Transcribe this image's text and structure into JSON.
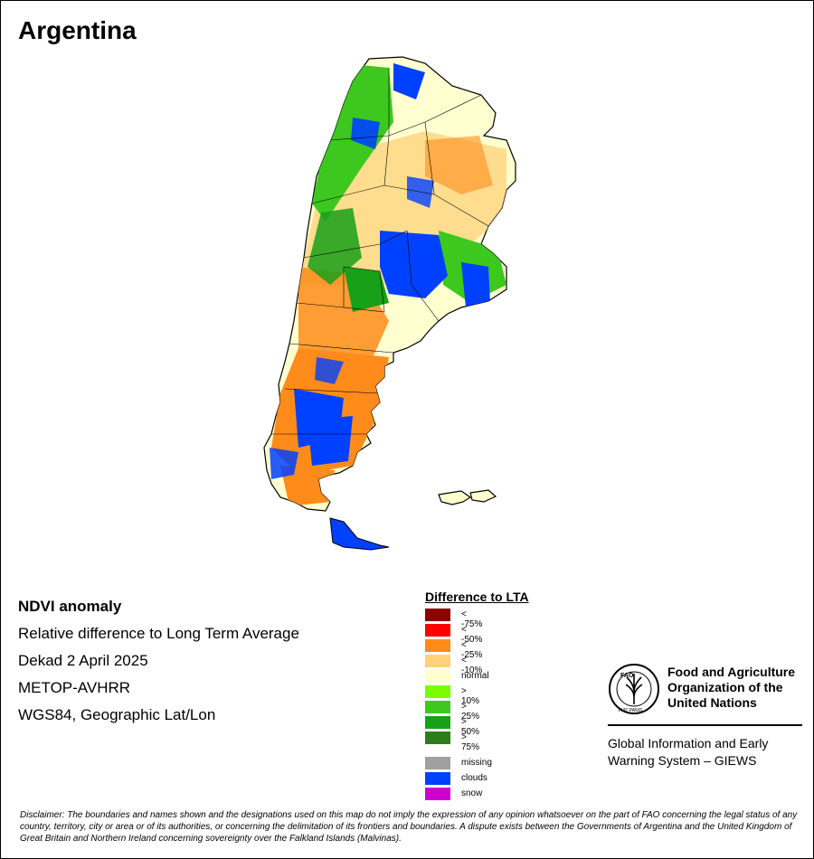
{
  "map": {
    "title": "Argentina"
  },
  "info": {
    "line1": "NDVI anomaly",
    "line2": "Relative difference to Long Term Average",
    "line3": "Dekad 2 April 2025",
    "line4": "METOP-AVHRR",
    "line5": "WGS84, Geographic Lat/Lon"
  },
  "legend": {
    "title": "Difference to LTA",
    "classes": [
      {
        "label": "< -75%",
        "color": "#8b0000"
      },
      {
        "label": "< -50%",
        "color": "#ff0000"
      },
      {
        "label": "< -25%",
        "color": "#ff8c1a"
      },
      {
        "label": "< -10%",
        "color": "#ffd27a"
      },
      {
        "label": "normal",
        "color": "#ffffd0"
      },
      {
        "label": "> 10%",
        "color": "#7cfc00"
      },
      {
        "label": "> 25%",
        "color": "#3cc81e"
      },
      {
        "label": "> 50%",
        "color": "#18a018"
      },
      {
        "label": "> 75%",
        "color": "#2e7d18"
      }
    ],
    "extra": [
      {
        "label": "missing",
        "color": "#a0a0a0"
      },
      {
        "label": "clouds",
        "color": "#0040ff"
      },
      {
        "label": "snow",
        "color": "#cc00cc"
      }
    ]
  },
  "org": {
    "name": "Food and Agriculture Organization of the United Nations",
    "logo_text": "FAO",
    "motto": "FIAT PANIS",
    "system": "Global Information and Early Warning System – GIEWS"
  },
  "disclaimer": "Disclaimer: The boundaries and names shown and the designations used on this map do not imply the expression of any opinion whatsoever on the part of FAO concerning the legal status of any country, territory, city or area or of its authorities, or concerning the delimitation of its frontiers and boundaries. A dispute exists between the Governments of Argentina and the United Kingdom of Great Britain and Northern Ireland concerning sovereignty over the Falkland Islands (Malvinas).",
  "colors": {
    "normal": "#ffffd0",
    "dry": "#ff8c1a",
    "slightly_dry": "#ffd27a",
    "wet": "#3cc81e",
    "clouds": "#0040ff",
    "border": "#000000"
  }
}
